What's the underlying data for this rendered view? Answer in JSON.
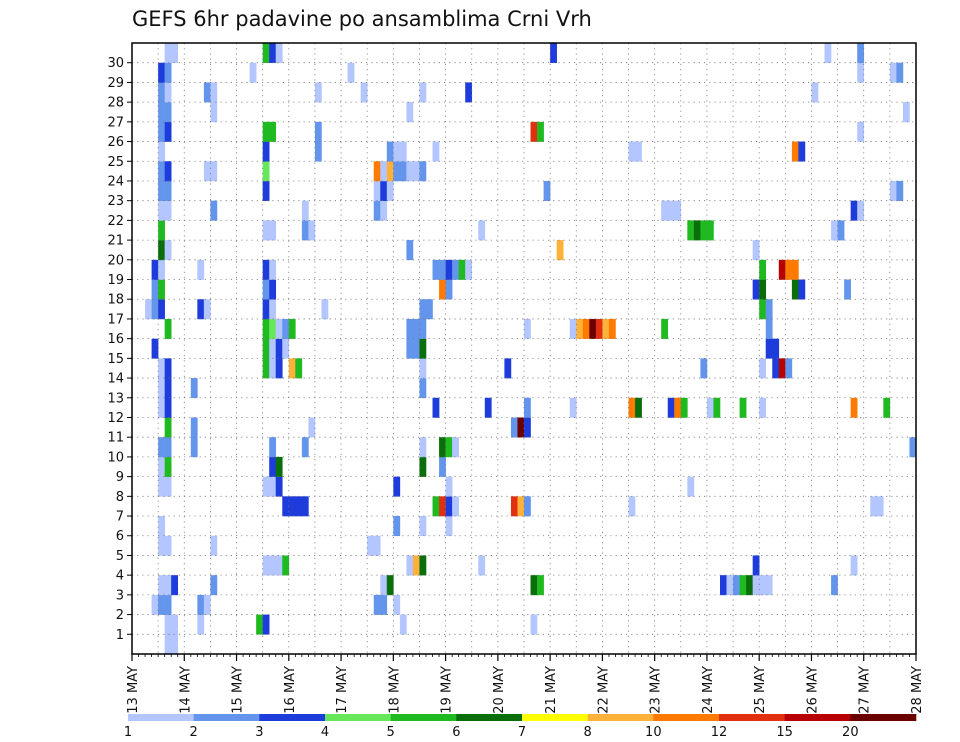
{
  "chart_data": {
    "type": "heatmap",
    "title": "GEFS 6hr padavine po ansamblima Crni Vrh",
    "xlabel": "",
    "ylabel": "",
    "x_tick_labels": [
      "13 MAY",
      "14 MAY",
      "15 MAY",
      "16 MAY",
      "17 MAY",
      "18 MAY",
      "19 MAY",
      "20 MAY",
      "21 MAY",
      "22 MAY",
      "23 MAY",
      "24 MAY",
      "25 MAY",
      "26 MAY",
      "27 MAY",
      "28 MAY"
    ],
    "y_tick_labels": [
      "1",
      "2",
      "3",
      "4",
      "5",
      "6",
      "7",
      "8",
      "9",
      "10",
      "11",
      "12",
      "13",
      "14",
      "15",
      "16",
      "17",
      "18",
      "19",
      "20",
      "21",
      "22",
      "23",
      "24",
      "25",
      "26",
      "27",
      "28",
      "29",
      "30"
    ],
    "xlim": [
      "13 MAY 00z",
      "28 MAY 00z"
    ],
    "time_step_hours": 6,
    "ylim": [
      0,
      30
    ],
    "grid": "dotted",
    "colorbar": {
      "position": "bottom",
      "labels": [
        "1",
        "2",
        "3",
        "4",
        "5",
        "6",
        "7",
        "8",
        "10",
        "12",
        "15",
        "20"
      ],
      "colors": [
        "#b3c6ff",
        "#6495ed",
        "#1e3cdc",
        "#66e85a",
        "#1fba1f",
        "#0a6e0a",
        "#ffff00",
        "#ffb13a",
        "#ff7a00",
        "#e03010",
        "#b80000",
        "#6b0000"
      ]
    },
    "series": [
      {
        "row": 0,
        "start": 5,
        "values": [
          1,
          1
        ]
      },
      {
        "row": 1,
        "start": 5,
        "values": [
          1,
          1
        ]
      },
      {
        "row": 1,
        "start": 10,
        "values": [
          1
        ]
      },
      {
        "row": 1,
        "start": 19,
        "values": [
          5,
          3
        ]
      },
      {
        "row": 1,
        "start": 41,
        "values": [
          1
        ]
      },
      {
        "row": 1,
        "start": 61,
        "values": [
          1
        ]
      },
      {
        "row": 2,
        "start": 3,
        "values": [
          1,
          2,
          2
        ]
      },
      {
        "row": 2,
        "start": 10,
        "values": [
          2,
          1
        ]
      },
      {
        "row": 2,
        "start": 37,
        "values": [
          2,
          2
        ]
      },
      {
        "row": 2,
        "start": 40,
        "values": [
          1
        ]
      },
      {
        "row": 3,
        "start": 4,
        "values": [
          1,
          1,
          3
        ]
      },
      {
        "row": 3,
        "start": 12,
        "values": [
          2
        ]
      },
      {
        "row": 3,
        "start": 38,
        "values": [
          1,
          6
        ]
      },
      {
        "row": 3,
        "start": 61,
        "values": [
          6,
          5
        ]
      },
      {
        "row": 3,
        "start": 90,
        "values": [
          3,
          1,
          2,
          5,
          6,
          1,
          1,
          1
        ]
      },
      {
        "row": 3,
        "start": 107,
        "values": [
          2
        ]
      },
      {
        "row": 4,
        "start": 20,
        "values": [
          1,
          1,
          1,
          5
        ]
      },
      {
        "row": 4,
        "start": 42,
        "values": [
          1,
          8,
          6
        ]
      },
      {
        "row": 4,
        "start": 53,
        "values": [
          1
        ]
      },
      {
        "row": 4,
        "start": 95,
        "values": [
          3
        ]
      },
      {
        "row": 4,
        "start": 110,
        "values": [
          1
        ]
      },
      {
        "row": 5,
        "start": 4,
        "values": [
          1,
          1
        ]
      },
      {
        "row": 5,
        "start": 12,
        "values": [
          1
        ]
      },
      {
        "row": 5,
        "start": 36,
        "values": [
          1,
          1
        ]
      },
      {
        "row": 6,
        "start": 4,
        "values": [
          1
        ]
      },
      {
        "row": 6,
        "start": 40,
        "values": [
          2
        ]
      },
      {
        "row": 6,
        "start": 44,
        "values": [
          1
        ]
      },
      {
        "row": 6,
        "start": 48,
        "values": [
          1
        ]
      },
      {
        "row": 7,
        "start": 23,
        "values": [
          3,
          3,
          3,
          3
        ]
      },
      {
        "row": 7,
        "start": 46,
        "values": [
          5,
          12,
          3,
          1
        ]
      },
      {
        "row": 7,
        "start": 58,
        "values": [
          12,
          8,
          2
        ]
      },
      {
        "row": 7,
        "start": 76,
        "values": [
          1
        ]
      },
      {
        "row": 7,
        "start": 113,
        "values": [
          1,
          1
        ]
      },
      {
        "row": 8,
        "start": 4,
        "values": [
          1,
          1
        ]
      },
      {
        "row": 8,
        "start": 20,
        "values": [
          1,
          1,
          3
        ]
      },
      {
        "row": 8,
        "start": 40,
        "values": [
          3
        ]
      },
      {
        "row": 8,
        "start": 48,
        "values": [
          1
        ]
      },
      {
        "row": 8,
        "start": 85,
        "values": [
          1
        ]
      },
      {
        "row": 9,
        "start": 4,
        "values": [
          1,
          5
        ]
      },
      {
        "row": 9,
        "start": 21,
        "values": [
          3,
          6
        ]
      },
      {
        "row": 9,
        "start": 44,
        "values": [
          6
        ]
      },
      {
        "row": 9,
        "start": 47,
        "values": [
          2
        ]
      },
      {
        "row": 10,
        "start": 4,
        "values": [
          2,
          2
        ]
      },
      {
        "row": 10,
        "start": 9,
        "values": [
          2
        ]
      },
      {
        "row": 10,
        "start": 21,
        "values": [
          2
        ]
      },
      {
        "row": 10,
        "start": 26,
        "values": [
          2
        ]
      },
      {
        "row": 10,
        "start": 44,
        "values": [
          1
        ]
      },
      {
        "row": 10,
        "start": 47,
        "values": [
          6,
          5,
          1
        ]
      },
      {
        "row": 10,
        "start": 119,
        "values": [
          2
        ]
      },
      {
        "row": 11,
        "start": 5,
        "values": [
          5
        ]
      },
      {
        "row": 11,
        "start": 9,
        "values": [
          2
        ]
      },
      {
        "row": 11,
        "start": 27,
        "values": [
          1
        ]
      },
      {
        "row": 11,
        "start": 58,
        "values": [
          2,
          20,
          3
        ]
      },
      {
        "row": 12,
        "start": 4,
        "values": [
          1,
          3
        ]
      },
      {
        "row": 12,
        "start": 46,
        "values": [
          3
        ]
      },
      {
        "row": 12,
        "start": 54,
        "values": [
          3
        ]
      },
      {
        "row": 12,
        "start": 60,
        "values": [
          2
        ]
      },
      {
        "row": 12,
        "start": 67,
        "values": [
          1
        ]
      },
      {
        "row": 12,
        "start": 76,
        "values": [
          10,
          6
        ]
      },
      {
        "row": 12,
        "start": 82,
        "values": [
          3,
          10,
          5
        ]
      },
      {
        "row": 12,
        "start": 88,
        "values": [
          1,
          5
        ]
      },
      {
        "row": 12,
        "start": 93,
        "values": [
          5
        ]
      },
      {
        "row": 12,
        "start": 96,
        "values": [
          1
        ]
      },
      {
        "row": 12,
        "start": 110,
        "values": [
          10
        ]
      },
      {
        "row": 12,
        "start": 115,
        "values": [
          5
        ]
      },
      {
        "row": 13,
        "start": 4,
        "values": [
          1,
          3
        ]
      },
      {
        "row": 13,
        "start": 9,
        "values": [
          2
        ]
      },
      {
        "row": 13,
        "start": 44,
        "values": [
          2
        ]
      },
      {
        "row": 14,
        "start": 4,
        "values": [
          1,
          3
        ]
      },
      {
        "row": 14,
        "start": 20,
        "values": [
          5,
          1,
          3
        ]
      },
      {
        "row": 14,
        "start": 24,
        "values": [
          8,
          5
        ]
      },
      {
        "row": 14,
        "start": 44,
        "values": [
          1
        ]
      },
      {
        "row": 14,
        "start": 57,
        "values": [
          3
        ]
      },
      {
        "row": 14,
        "start": 87,
        "values": [
          2
        ]
      },
      {
        "row": 14,
        "start": 96,
        "values": [
          1
        ]
      },
      {
        "row": 14,
        "start": 98,
        "values": [
          3,
          15,
          2
        ]
      },
      {
        "row": 15,
        "start": 3,
        "values": [
          3
        ]
      },
      {
        "row": 15,
        "start": 20,
        "values": [
          5,
          1,
          3,
          1
        ]
      },
      {
        "row": 15,
        "start": 42,
        "values": [
          2,
          2,
          6
        ]
      },
      {
        "row": 15,
        "start": 97,
        "values": [
          3,
          3
        ]
      },
      {
        "row": 16,
        "start": 5,
        "values": [
          5
        ]
      },
      {
        "row": 16,
        "start": 20,
        "values": [
          5,
          4,
          1,
          2,
          5
        ]
      },
      {
        "row": 16,
        "start": 42,
        "values": [
          2,
          2,
          2
        ]
      },
      {
        "row": 16,
        "start": 60,
        "values": [
          1
        ]
      },
      {
        "row": 16,
        "start": 67,
        "values": [
          1,
          8,
          10,
          20,
          12,
          8,
          10
        ]
      },
      {
        "row": 16,
        "start": 81,
        "values": [
          5
        ]
      },
      {
        "row": 16,
        "start": 97,
        "values": [
          2
        ]
      },
      {
        "row": 17,
        "start": 2,
        "values": [
          1,
          2,
          3
        ]
      },
      {
        "row": 17,
        "start": 10,
        "values": [
          3,
          1
        ]
      },
      {
        "row": 17,
        "start": 20,
        "values": [
          3,
          1
        ]
      },
      {
        "row": 17,
        "start": 29,
        "values": [
          1
        ]
      },
      {
        "row": 17,
        "start": 44,
        "values": [
          2,
          2
        ]
      },
      {
        "row": 17,
        "start": 96,
        "values": [
          5,
          2
        ]
      },
      {
        "row": 18,
        "start": 3,
        "values": [
          2,
          5
        ]
      },
      {
        "row": 18,
        "start": 20,
        "values": [
          2,
          3
        ]
      },
      {
        "row": 18,
        "start": 47,
        "values": [
          10,
          2
        ]
      },
      {
        "row": 18,
        "start": 95,
        "values": [
          3,
          6
        ]
      },
      {
        "row": 18,
        "start": 101,
        "values": [
          6,
          3
        ]
      },
      {
        "row": 18,
        "start": 109,
        "values": [
          2
        ]
      },
      {
        "row": 19,
        "start": 3,
        "values": [
          3,
          1
        ]
      },
      {
        "row": 19,
        "start": 10,
        "values": [
          1
        ]
      },
      {
        "row": 19,
        "start": 20,
        "values": [
          3,
          1
        ]
      },
      {
        "row": 19,
        "start": 46,
        "values": [
          2,
          2,
          3,
          2,
          5,
          1
        ]
      },
      {
        "row": 19,
        "start": 96,
        "values": [
          5
        ]
      },
      {
        "row": 19,
        "start": 99,
        "values": [
          15,
          10,
          10
        ]
      },
      {
        "row": 20,
        "start": 4,
        "values": [
          6,
          1
        ]
      },
      {
        "row": 20,
        "start": 42,
        "values": [
          2
        ]
      },
      {
        "row": 20,
        "start": 65,
        "values": [
          8
        ]
      },
      {
        "row": 20,
        "start": 95,
        "values": [
          1
        ]
      },
      {
        "row": 21,
        "start": 4,
        "values": [
          5
        ]
      },
      {
        "row": 21,
        "start": 20,
        "values": [
          1,
          1
        ]
      },
      {
        "row": 21,
        "start": 26,
        "values": [
          2,
          1
        ]
      },
      {
        "row": 21,
        "start": 53,
        "values": [
          1
        ]
      },
      {
        "row": 21,
        "start": 85,
        "values": [
          5,
          6,
          5,
          5
        ]
      },
      {
        "row": 21,
        "start": 107,
        "values": [
          1,
          2
        ]
      },
      {
        "row": 22,
        "start": 4,
        "values": [
          1,
          1
        ]
      },
      {
        "row": 22,
        "start": 12,
        "values": [
          2
        ]
      },
      {
        "row": 22,
        "start": 26,
        "values": [
          1
        ]
      },
      {
        "row": 22,
        "start": 37,
        "values": [
          2,
          1
        ]
      },
      {
        "row": 22,
        "start": 81,
        "values": [
          1,
          1,
          1
        ]
      },
      {
        "row": 22,
        "start": 110,
        "values": [
          3,
          1
        ]
      },
      {
        "row": 23,
        "start": 4,
        "values": [
          2,
          2
        ]
      },
      {
        "row": 23,
        "start": 20,
        "values": [
          3
        ]
      },
      {
        "row": 23,
        "start": 37,
        "values": [
          1,
          3,
          1
        ]
      },
      {
        "row": 23,
        "start": 63,
        "values": [
          2
        ]
      },
      {
        "row": 23,
        "start": 116,
        "values": [
          1,
          2
        ]
      },
      {
        "row": 24,
        "start": 4,
        "values": [
          2,
          3
        ]
      },
      {
        "row": 24,
        "start": 11,
        "values": [
          1,
          1
        ]
      },
      {
        "row": 24,
        "start": 20,
        "values": [
          4
        ]
      },
      {
        "row": 24,
        "start": 37,
        "values": [
          10,
          1,
          8,
          2
        ]
      },
      {
        "row": 24,
        "start": 41,
        "values": [
          2,
          1,
          1,
          2
        ]
      },
      {
        "row": 25,
        "start": 4,
        "values": [
          1
        ]
      },
      {
        "row": 25,
        "start": 20,
        "values": [
          3
        ]
      },
      {
        "row": 25,
        "start": 28,
        "values": [
          2
        ]
      },
      {
        "row": 25,
        "start": 39,
        "values": [
          2,
          1,
          1
        ]
      },
      {
        "row": 25,
        "start": 46,
        "values": [
          1
        ]
      },
      {
        "row": 25,
        "start": 76,
        "values": [
          1,
          1
        ]
      },
      {
        "row": 25,
        "start": 101,
        "values": [
          10,
          3
        ]
      },
      {
        "row": 26,
        "start": 4,
        "values": [
          2,
          3
        ]
      },
      {
        "row": 26,
        "start": 20,
        "values": [
          5,
          5
        ]
      },
      {
        "row": 26,
        "start": 28,
        "values": [
          2
        ]
      },
      {
        "row": 26,
        "start": 61,
        "values": [
          12,
          5
        ]
      },
      {
        "row": 26,
        "start": 111,
        "values": [
          1
        ]
      },
      {
        "row": 27,
        "start": 4,
        "values": [
          2,
          2
        ]
      },
      {
        "row": 27,
        "start": 12,
        "values": [
          1
        ]
      },
      {
        "row": 27,
        "start": 42,
        "values": [
          1
        ]
      },
      {
        "row": 27,
        "start": 118,
        "values": [
          1
        ]
      },
      {
        "row": 28,
        "start": 4,
        "values": [
          2,
          1
        ]
      },
      {
        "row": 28,
        "start": 11,
        "values": [
          2,
          1
        ]
      },
      {
        "row": 28,
        "start": 28,
        "values": [
          1
        ]
      },
      {
        "row": 28,
        "start": 35,
        "values": [
          1
        ]
      },
      {
        "row": 28,
        "start": 44,
        "values": [
          1
        ]
      },
      {
        "row": 28,
        "start": 51,
        "values": [
          3
        ]
      },
      {
        "row": 28,
        "start": 104,
        "values": [
          1
        ]
      },
      {
        "row": 29,
        "start": 4,
        "values": [
          3,
          2
        ]
      },
      {
        "row": 29,
        "start": 18,
        "values": [
          1
        ]
      },
      {
        "row": 29,
        "start": 33,
        "values": [
          1
        ]
      },
      {
        "row": 29,
        "start": 111,
        "values": [
          1
        ]
      },
      {
        "row": 29,
        "start": 116,
        "values": [
          1,
          2
        ]
      },
      {
        "row": 30,
        "start": 5,
        "values": [
          1,
          1
        ]
      },
      {
        "row": 30,
        "start": 20,
        "values": [
          5,
          3,
          1
        ]
      },
      {
        "row": 30,
        "start": 64,
        "values": [
          3
        ]
      },
      {
        "row": 30,
        "start": 106,
        "values": [
          1
        ]
      },
      {
        "row": 30,
        "start": 111,
        "values": [
          2
        ]
      }
    ]
  }
}
